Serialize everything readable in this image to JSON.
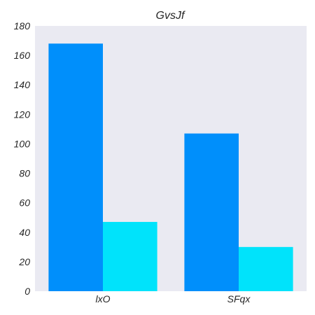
{
  "chart_data": {
    "type": "bar",
    "title": "GvsJf",
    "xlabel": "",
    "ylabel": "",
    "categories": [
      "lxO",
      "SFqx"
    ],
    "series": [
      {
        "values": [
          168,
          107
        ],
        "color": "#008ffb"
      },
      {
        "values": [
          47,
          30
        ],
        "color": "#00e3fb"
      }
    ],
    "ylim": [
      0,
      180
    ],
    "yticks": [
      0,
      20,
      40,
      60,
      80,
      100,
      120,
      140,
      160,
      180
    ],
    "grid": false,
    "background": "#eaeaf2"
  }
}
